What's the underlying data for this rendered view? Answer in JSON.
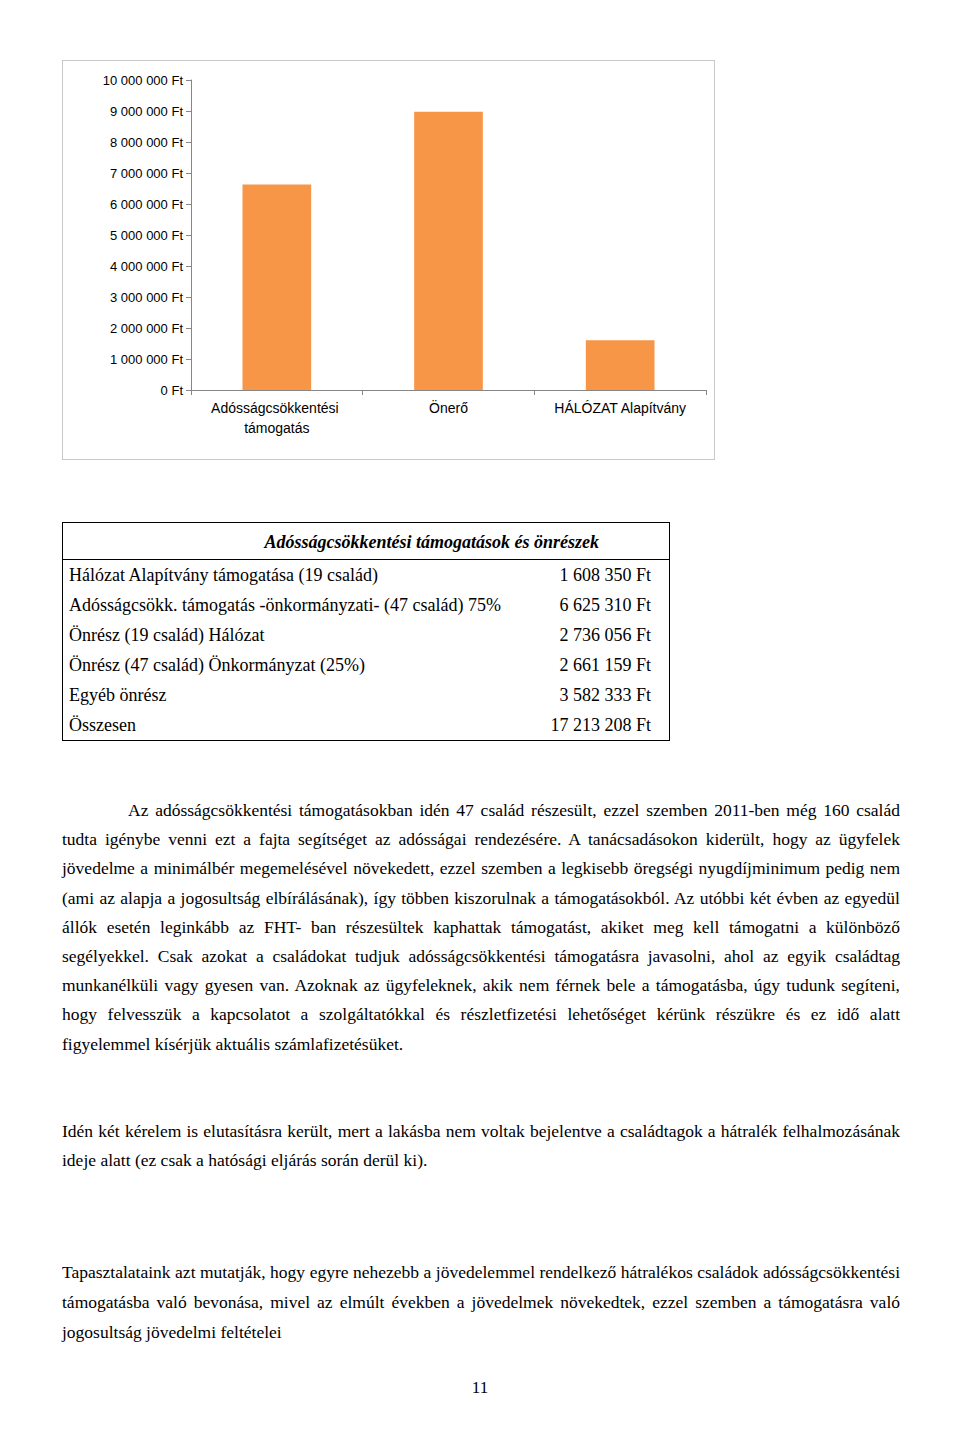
{
  "chart_data": {
    "type": "bar",
    "categories": [
      "Adósságcsökkentési támogatás",
      "Önerő",
      "HÁLÓZAT Alapítvány"
    ],
    "values": [
      6625310,
      8979548,
      1608350
    ],
    "color": "#f79646",
    "ylim": [
      0,
      10000000
    ],
    "yticks": [
      {
        "value": 0,
        "label": "0 Ft"
      },
      {
        "value": 1000000,
        "label": "1 000 000 Ft"
      },
      {
        "value": 2000000,
        "label": "2 000 000 Ft"
      },
      {
        "value": 3000000,
        "label": "3 000 000 Ft"
      },
      {
        "value": 4000000,
        "label": "4 000 000 Ft"
      },
      {
        "value": 5000000,
        "label": "5 000 000 Ft"
      },
      {
        "value": 6000000,
        "label": "6 000 000 Ft"
      },
      {
        "value": 7000000,
        "label": "7 000 000 Ft"
      },
      {
        "value": 8000000,
        "label": "8 000 000 Ft"
      },
      {
        "value": 9000000,
        "label": "9 000 000 Ft"
      },
      {
        "value": 10000000,
        "label": "10 000 000 Ft"
      }
    ],
    "grid": false
  },
  "table": {
    "title": "Adósságcsökkentési támogatások és önrészek",
    "rows": [
      [
        "Hálózat Alapítvány támogatása (19 család)",
        "1 608 350 Ft"
      ],
      [
        "Adósságcsökk. támogatás -önkormányzati- (47 család) 75%",
        "6 625 310 Ft"
      ],
      [
        "Önrész (19 család) Hálózat",
        "2 736 056 Ft"
      ],
      [
        "Önrész (47 család) Önkormányzat (25%)",
        "2 661 159 Ft"
      ],
      [
        "Egyéb önrész",
        "3 582 333 Ft"
      ],
      [
        "Összesen",
        "17 213 208 Ft"
      ]
    ]
  },
  "paragraphs": [
    "Az adósságcsökkentési támogatásokban idén 47 család részesült, ezzel szemben 2011-ben még 160 család tudta igénybe venni ezt a fajta segítséget az adósságai rendezésére. A tanácsadásokon kiderült, hogy az ügyfelek jövedelme a minimálbér megemelésével növekedett, ezzel szemben a legkisebb öregségi nyugdíjminimum pedig nem (ami az alapja a jogosultság elbírálásának), így többen kiszorulnak a támogatásokból. Az utóbbi két évben az egyedül állók esetén leginkább az FHT- ban részesültek kaphattak támogatást, akiket meg kell támogatni a különböző segélyekkel. Csak azokat a családokat tudjuk adósságcsökkentési támogatásra javasolni, ahol az egyik családtag munkanélküli vagy gyesen van. Azoknak az ügyfeleknek, akik nem férnek bele a támogatásba, úgy tudunk segíteni, hogy felvesszük a kapcsolatot a szolgáltatókkal és részletfizetési lehetőséget kérünk részükre és ez idő alatt figyelemmel kísérjük aktuális számlafizetésüket.",
    "Idén két kérelem is elutasításra került, mert a lakásba nem voltak bejelentve a családtagok a hátralék felhalmozásának ideje alatt (ez csak a hatósági eljárás során derül ki).",
    "Tapasztalataink azt mutatják, hogy egyre nehezebb a jövedelemmel rendelkező hátralékos családok adósságcsökkentési támogatásba való bevonása, mivel az elmúlt években a jövedelmek növekedtek, ezzel szemben a támogatásra való jogosultság jövedelmi feltételei"
  ],
  "page_number": "11"
}
